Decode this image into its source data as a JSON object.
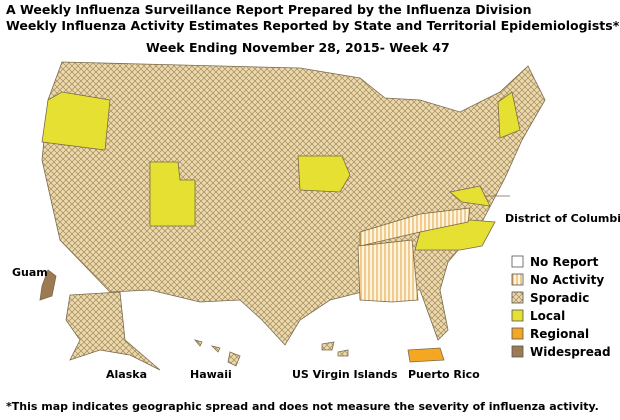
{
  "header": {
    "title": "A Weekly Influenza Surveillance Report Prepared by the Influenza Division",
    "subtitle": "Weekly Influenza Activity Estimates Reported by State and Territorial Epidemiologists*",
    "week": "Week Ending November 28, 2015- Week 47"
  },
  "legend": {
    "items": [
      "No Report",
      "No Activity",
      "Sporadic",
      "Local",
      "Regional",
      "Widespread"
    ]
  },
  "labels": {
    "guam": "Guam",
    "alaska": "Alaska",
    "hawaii": "Hawaii",
    "virgin_islands": "US Virgin Islands",
    "puerto_rico": "Puerto Rico",
    "dc": "District of Columbia"
  },
  "footnote": "*This map indicates geographic spread and does not measure the severity of influenza activity."
}
